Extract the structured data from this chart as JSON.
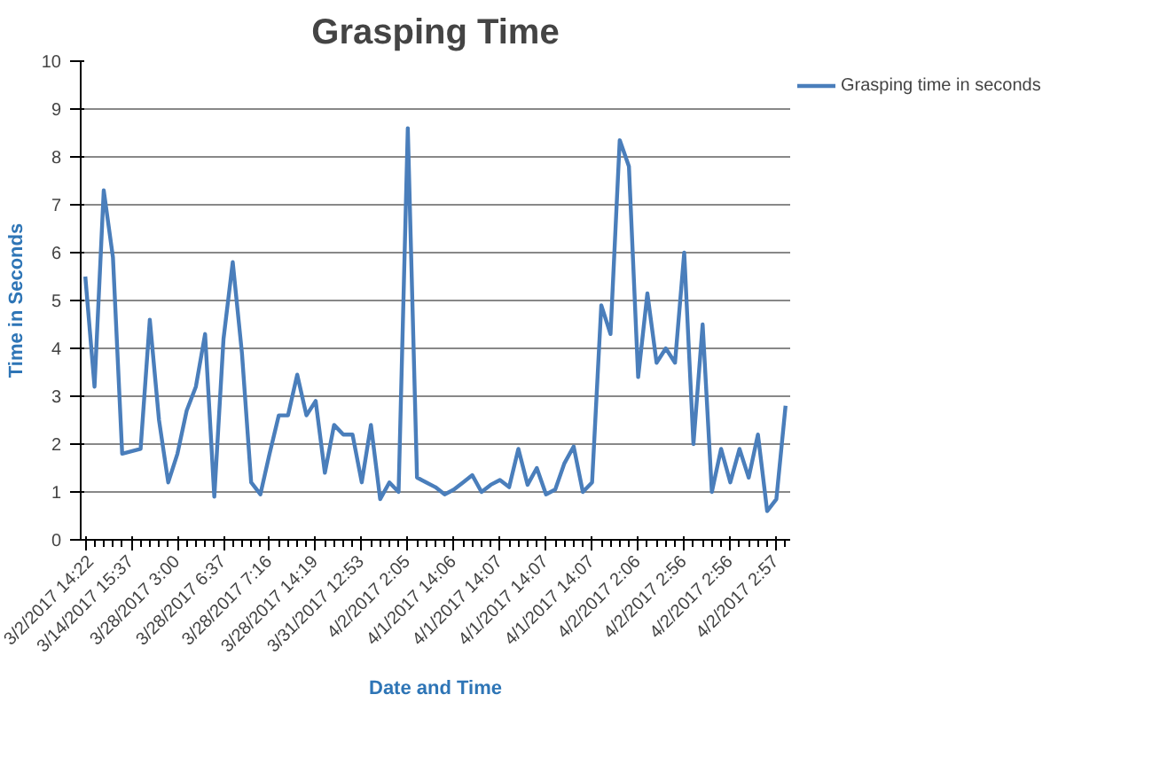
{
  "chart_data": {
    "type": "line",
    "title": "Grasping Time",
    "xlabel": "Date and Time",
    "ylabel": "Time in Seconds",
    "categories": [
      "3/2/2017 14:22",
      null,
      null,
      null,
      null,
      "3/14/2017 15:37",
      null,
      null,
      null,
      null,
      "3/28/2017 3:00",
      null,
      null,
      null,
      null,
      "3/28/2017 6:37",
      null,
      null,
      null,
      null,
      "3/28/2017 7:16",
      null,
      null,
      null,
      null,
      "3/28/2017 14:19",
      null,
      null,
      null,
      null,
      "3/31/2017 12:53",
      null,
      null,
      null,
      null,
      "4/2/2017 2:05",
      null,
      null,
      null,
      null,
      "4/1/2017 14:06",
      null,
      null,
      null,
      null,
      "4/1/2017 14:07",
      null,
      null,
      null,
      null,
      "4/1/2017 14:07",
      null,
      null,
      null,
      null,
      "4/1/2017 14:07",
      null,
      null,
      null,
      null,
      "4/2/2017 2:06",
      null,
      null,
      null,
      null,
      "4/2/2017 2:56",
      null,
      null,
      null,
      null,
      "4/2/2017 2:56",
      null,
      null,
      null,
      null,
      "4/2/2017 2:57",
      null
    ],
    "series": [
      {
        "name": "Grasping time in seconds",
        "color": "#4a7ebb",
        "values": [
          5.5,
          3.2,
          7.3,
          5.9,
          1.8,
          1.85,
          1.9,
          4.6,
          2.5,
          1.2,
          1.8,
          2.7,
          3.2,
          4.3,
          0.9,
          4.2,
          5.8,
          3.9,
          1.2,
          0.95,
          1.8,
          2.6,
          2.6,
          3.45,
          2.6,
          2.9,
          1.4,
          2.4,
          2.2,
          2.2,
          1.2,
          2.4,
          0.85,
          1.2,
          1.0,
          8.6,
          1.3,
          1.2,
          1.1,
          0.95,
          1.05,
          1.2,
          1.35,
          1.0,
          1.15,
          1.25,
          1.1,
          1.9,
          1.15,
          1.5,
          0.95,
          1.05,
          1.6,
          1.95,
          1.0,
          1.2,
          4.9,
          4.3,
          8.35,
          7.8,
          3.4,
          5.15,
          3.7,
          4.0,
          3.7,
          6.0,
          2.0,
          4.5,
          1.0,
          1.9,
          1.2,
          1.9,
          1.3,
          2.2,
          0.6,
          0.85,
          2.8
        ]
      }
    ],
    "ylim": [
      0,
      10
    ],
    "yticks": [
      0,
      1,
      2,
      3,
      4,
      5,
      6,
      7,
      8,
      9,
      10
    ],
    "grid": "y",
    "legend": "right",
    "marker": "none",
    "line_style": "solid"
  }
}
